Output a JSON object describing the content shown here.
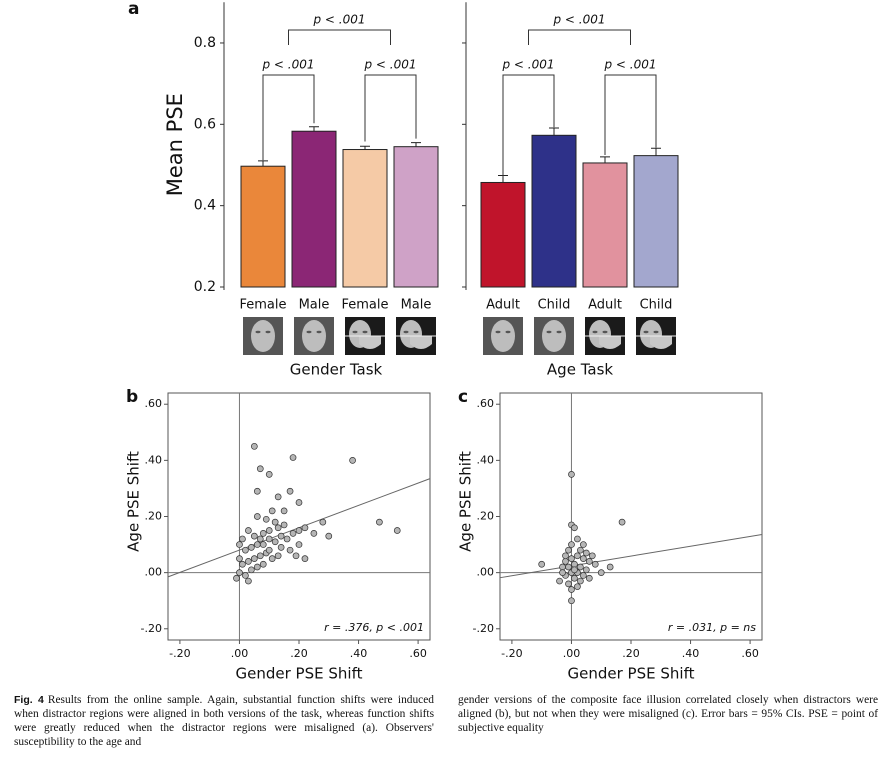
{
  "chart_data": [
    {
      "type": "bar",
      "panel_label": "a",
      "y_label": "Mean PSE",
      "x_label": "Gender Task",
      "categories": [
        "Female",
        "Male",
        "Female",
        "Male"
      ],
      "values": [
        0.497,
        0.583,
        0.538,
        0.545
      ],
      "errors": [
        0.013,
        0.011,
        0.008,
        0.01
      ],
      "colors": [
        "#ea873a",
        "#8b2675",
        "#f5caa6",
        "#cfa2c7"
      ],
      "ylim": [
        0.2,
        0.9
      ],
      "yticks": [
        0.2,
        0.4,
        0.6,
        0.8
      ],
      "annotations": [
        "p < .001",
        "p < .001",
        "p < .001"
      ]
    },
    {
      "type": "bar",
      "x_label": "Age Task",
      "categories": [
        "Adult",
        "Child",
        "Adult",
        "Child"
      ],
      "values": [
        0.457,
        0.573,
        0.505,
        0.523
      ],
      "errors": [
        0.017,
        0.018,
        0.015,
        0.018
      ],
      "colors": [
        "#c0142b",
        "#2e3189",
        "#e1929e",
        "#a3a7ce"
      ],
      "ylim": [
        0.2,
        0.9
      ],
      "yticks": [
        0.2,
        0.4,
        0.6,
        0.8
      ],
      "annotations": [
        "p < .001",
        "p < .001",
        "p < .001"
      ]
    },
    {
      "type": "scatter",
      "panel_label": "b",
      "x_label": "Gender PSE Shift",
      "y_label": "Age PSE Shift",
      "annotation": "r = .376, p < .001",
      "x": [
        0.05,
        0.07,
        0.1,
        0.18,
        0.38,
        0.06,
        0.17,
        0.13,
        0.2,
        0.15,
        0.11,
        0.06,
        0.47,
        0.53,
        0.28,
        0.3,
        0.25,
        0.2,
        0.17,
        0.19,
        0.22,
        0.15,
        0.13,
        0.1,
        0.08,
        0.05,
        0.03,
        0.01,
        0.0,
        0.02,
        0.04,
        0.06,
        0.08,
        0.1,
        0.12,
        0.14,
        0.09,
        0.07,
        0.05,
        0.03,
        0.01,
        0.0,
        -0.01,
        0.02,
        0.04,
        0.06,
        0.08,
        0.11,
        0.13,
        0.16,
        0.18,
        0.2,
        0.22,
        0.03,
        0.0,
        0.09,
        0.12,
        0.14,
        0.07,
        0.1
      ],
      "y": [
        0.45,
        0.37,
        0.35,
        0.41,
        0.4,
        0.29,
        0.29,
        0.27,
        0.25,
        0.22,
        0.22,
        0.2,
        0.18,
        0.15,
        0.18,
        0.13,
        0.14,
        0.1,
        0.08,
        0.06,
        0.05,
        0.17,
        0.16,
        0.15,
        0.14,
        0.13,
        0.15,
        0.12,
        0.1,
        0.08,
        0.09,
        0.1,
        0.1,
        0.12,
        0.11,
        0.13,
        0.07,
        0.06,
        0.05,
        0.04,
        0.03,
        0.0,
        -0.02,
        -0.01,
        0.01,
        0.02,
        0.03,
        0.05,
        0.06,
        0.12,
        0.14,
        0.15,
        0.16,
        -0.03,
        0.05,
        0.19,
        0.18,
        0.09,
        0.12,
        0.08
      ],
      "trend_line": {
        "x": [
          -0.24,
          0.64
        ],
        "y": [
          -0.015,
          0.335
        ]
      },
      "xlim": [
        -0.24,
        0.64
      ],
      "ylim": [
        -0.24,
        0.64
      ],
      "xticks": [
        {
          "value": -0.2,
          "label": "-.20"
        },
        {
          "value": 0,
          "label": ".00"
        },
        {
          "value": 0.2,
          "label": ".20"
        },
        {
          "value": 0.4,
          "label": ".40"
        },
        {
          "value": 0.6,
          "label": ".60"
        }
      ],
      "yticks": [
        {
          "value": -0.2,
          "label": "-.20"
        },
        {
          "value": 0,
          "label": ".00"
        },
        {
          "value": 0.2,
          "label": ".20"
        },
        {
          "value": 0.4,
          "label": ".40"
        },
        {
          "value": 0.6,
          "label": ".60"
        }
      ]
    },
    {
      "type": "scatter",
      "panel_label": "c",
      "x_label": "Gender PSE Shift",
      "y_label": "Age PSE Shift",
      "annotation": "r = .031, p = ns",
      "x": [
        0.0,
        0.0,
        0.01,
        0.17,
        -0.1,
        0.13,
        0.08,
        0.1,
        0.05,
        0.07,
        0.04,
        0.02,
        0.0,
        -0.01,
        0.03,
        0.06,
        0.04,
        0.02,
        0.0,
        -0.02,
        -0.03,
        -0.01,
        0.01,
        0.03,
        0.05,
        0.02,
        0.0,
        -0.02,
        0.01,
        0.03,
        -0.01,
        0.0,
        0.02,
        -0.04,
        0.04,
        0.0,
        -0.03,
        0.06,
        0.01,
        -0.02
      ],
      "y": [
        0.35,
        0.17,
        0.16,
        0.18,
        0.03,
        0.02,
        0.03,
        0.0,
        0.07,
        0.06,
        0.1,
        0.12,
        0.1,
        0.08,
        0.08,
        0.04,
        0.05,
        0.06,
        0.05,
        0.04,
        0.02,
        0.02,
        0.03,
        0.02,
        0.01,
        0.0,
        0.0,
        -0.01,
        -0.02,
        -0.03,
        -0.04,
        -0.06,
        -0.05,
        -0.03,
        -0.01,
        -0.1,
        0.0,
        -0.02,
        0.01,
        0.06
      ],
      "trend_line": {
        "x": [
          -0.24,
          0.64
        ],
        "y": [
          -0.018,
          0.136
        ]
      },
      "xlim": [
        -0.24,
        0.64
      ],
      "ylim": [
        -0.24,
        0.64
      ],
      "xticks": [
        {
          "value": -0.2,
          "label": "-.20"
        },
        {
          "value": 0,
          "label": ".00"
        },
        {
          "value": 0.2,
          "label": ".20"
        },
        {
          "value": 0.4,
          "label": ".40"
        },
        {
          "value": 0.6,
          "label": ".60"
        }
      ],
      "yticks": [
        {
          "value": -0.2,
          "label": "-.20"
        },
        {
          "value": 0,
          "label": ".00"
        },
        {
          "value": 0.2,
          "label": ".20"
        },
        {
          "value": 0.4,
          "label": ".40"
        },
        {
          "value": 0.6,
          "label": ".60"
        }
      ]
    }
  ],
  "caption": {
    "label": "Fig. 4",
    "left": "Results from the online sample. Again, substantial function shifts were induced when distractor regions were aligned in both versions of the task, whereas function shifts were greatly reduced when the distractor regions were misaligned (a). Observers' susceptibility to the age and",
    "right": "gender versions of the composite face illusion correlated closely when distractors were aligned (b), but not when they were misaligned (c). Error bars = 95% CIs. PSE = point of subjective equality"
  }
}
